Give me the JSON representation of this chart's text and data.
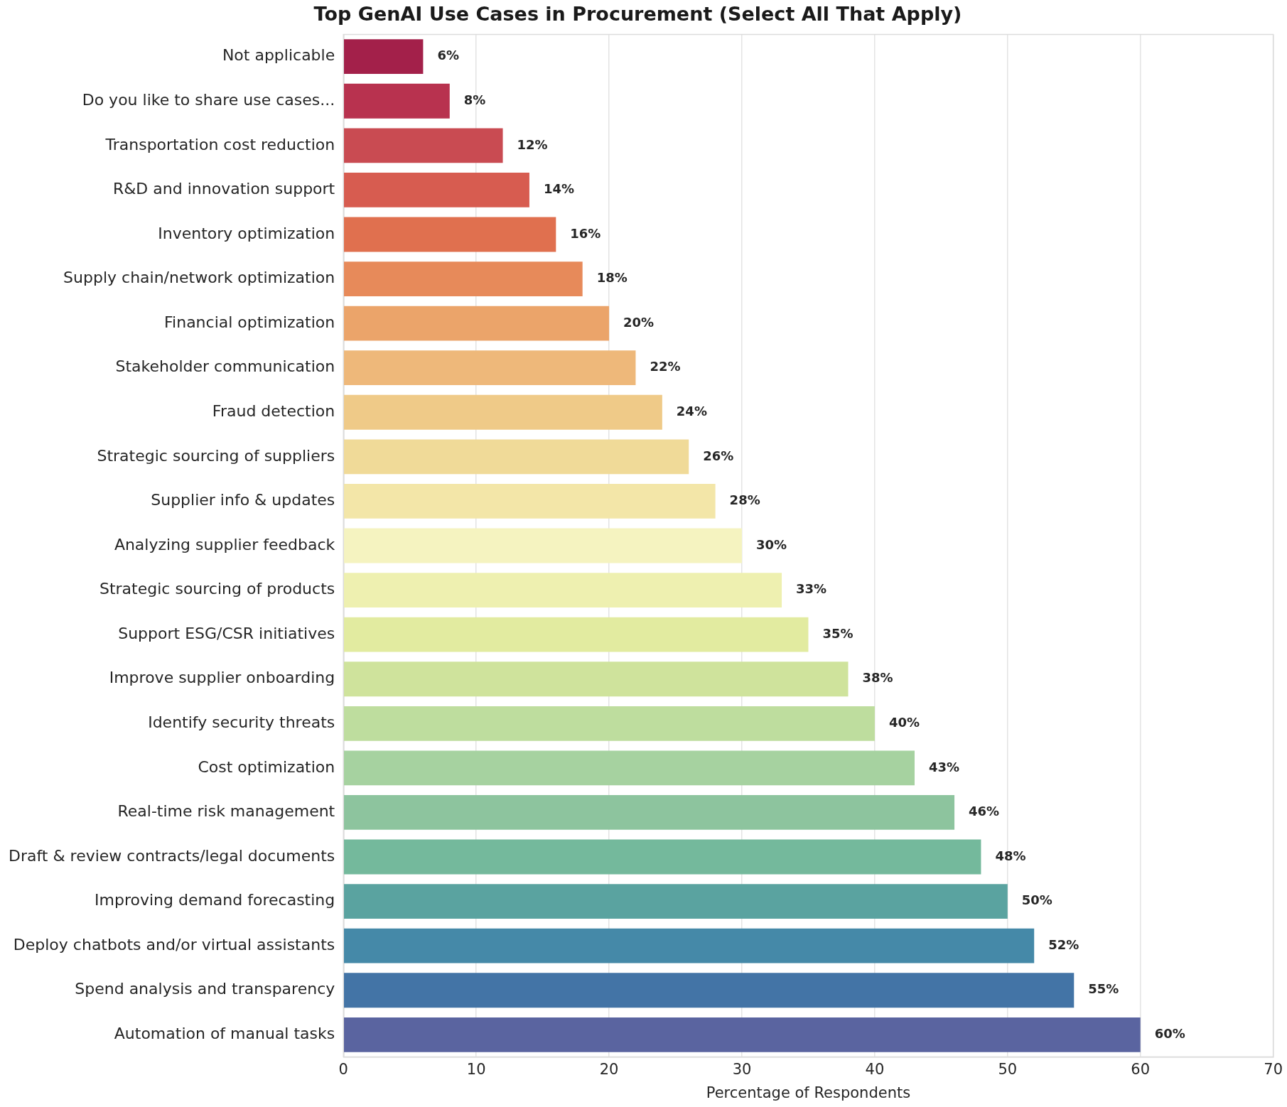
{
  "chart_data": {
    "type": "bar",
    "orientation": "horizontal",
    "title": "Top GenAI Use Cases in Procurement (Select All That Apply)",
    "xlabel": "Percentage of Respondents",
    "categories": [
      "Not applicable",
      "Do you like to share use cases...",
      "Transportation cost reduction",
      "R&D and innovation support",
      "Inventory optimization",
      "Supply chain/network optimization",
      "Financial optimization",
      "Stakeholder communication",
      "Fraud detection",
      "Strategic sourcing of suppliers",
      "Supplier info & updates",
      "Analyzing supplier feedback",
      "Strategic sourcing of products",
      "Support ESG/CSR initiatives",
      "Improve supplier onboarding",
      "Identify security threats",
      "Cost optimization",
      "Real-time risk management",
      "Draft & review contracts/legal documents",
      "Improving demand forecasting",
      "Deploy chatbots and/or virtual assistants",
      "Spend analysis and transparency",
      "Automation of manual tasks"
    ],
    "values": [
      6,
      8,
      12,
      14,
      16,
      18,
      20,
      22,
      24,
      26,
      28,
      30,
      33,
      35,
      38,
      40,
      43,
      46,
      48,
      50,
      52,
      55,
      60
    ],
    "value_labels": [
      "6%",
      "8%",
      "12%",
      "14%",
      "16%",
      "18%",
      "20%",
      "22%",
      "24%",
      "26%",
      "28%",
      "30%",
      "33%",
      "35%",
      "38%",
      "40%",
      "43%",
      "46%",
      "48%",
      "50%",
      "52%",
      "55%",
      "60%"
    ],
    "colors": [
      "#a3204a",
      "#b8324f",
      "#c94b52",
      "#d75c50",
      "#e0704f",
      "#e78a5a",
      "#eba46a",
      "#eeb87a",
      "#efca88",
      "#f0da98",
      "#f3e6a8",
      "#f5f3c0",
      "#eef0b0",
      "#e2eba0",
      "#cfe39c",
      "#bedd9e",
      "#a6d2a0",
      "#8dc49e",
      "#74b99c",
      "#5aa3a0",
      "#4589a8",
      "#4374a6",
      "#5a64a0"
    ],
    "xlim": [
      0,
      70
    ],
    "xticks": [
      0,
      10,
      20,
      30,
      40,
      50,
      60,
      70
    ],
    "grid": "x",
    "legend": false
  }
}
